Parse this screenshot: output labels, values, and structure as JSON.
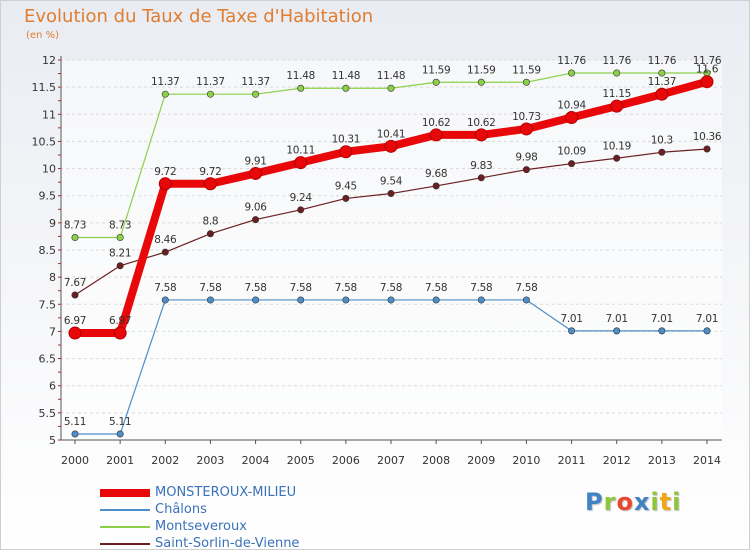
{
  "title": "Evolution du Taux de Taxe d'Habitation",
  "subtitle": "(en %)",
  "logo": {
    "letters": [
      "P",
      "r",
      "o",
      "x",
      "i",
      "t",
      "i"
    ],
    "colors": [
      "#3f83c4",
      "#8fc43c",
      "#e9462e",
      "#3f83c4",
      "#8fc43c",
      "#f2a516",
      "#8fc43c"
    ]
  },
  "chart_data": {
    "type": "line",
    "title": "Evolution du Taux de Taxe d'Habitation",
    "ylabel": "(en %)",
    "x": [
      "2000",
      "2001",
      "2002",
      "2003",
      "2004",
      "2005",
      "2006",
      "2007",
      "2008",
      "2009",
      "2010",
      "2011",
      "2012",
      "2013",
      "2014"
    ],
    "ylim": [
      5,
      12
    ],
    "yticks": [
      "5",
      "5.5",
      "6",
      "6.5",
      "7",
      "7.5",
      "8",
      "8.5",
      "9",
      "9.5",
      "10",
      "10.5",
      "11",
      "11.5",
      "12"
    ],
    "grid": true,
    "legend_position": "bottom-left",
    "series": [
      {
        "name": "MONSTEROUX-MILIEU",
        "color": "#e8080a",
        "values": [
          6.97,
          6.97,
          9.72,
          9.72,
          9.91,
          10.11,
          10.31,
          10.41,
          10.62,
          10.62,
          10.73,
          10.94,
          11.15,
          11.37,
          11.6
        ],
        "labels": [
          "6.97",
          "6.97",
          "9.72",
          "9.72",
          "9.91",
          "10.11",
          "10.31",
          "10.41",
          "10.62",
          "10.62",
          "10.73",
          "10.94",
          "11.15",
          "11.37",
          "11.6"
        ]
      },
      {
        "name": "Châlons",
        "color": "#4d8ec9",
        "values": [
          5.11,
          5.11,
          7.58,
          7.58,
          7.58,
          7.58,
          7.58,
          7.58,
          7.58,
          7.58,
          7.58,
          7.01,
          7.01,
          7.01,
          7.01
        ],
        "labels": [
          "5.11",
          "5.11",
          "7.58",
          "7.58",
          "7.58",
          "7.58",
          "7.58",
          "7.58",
          "7.58",
          "7.58",
          "7.58",
          "7.01",
          "7.01",
          "7.01",
          "7.01"
        ]
      },
      {
        "name": "Montseveroux",
        "color": "#8cd04a",
        "values": [
          8.73,
          8.73,
          11.37,
          11.37,
          11.37,
          11.48,
          11.48,
          11.48,
          11.59,
          11.59,
          11.59,
          11.76,
          11.76,
          11.76,
          11.76
        ],
        "labels": [
          "8.73",
          "8.73",
          "11.37",
          "11.37",
          "11.37",
          "11.48",
          "11.48",
          "11.48",
          "11.59",
          "11.59",
          "11.59",
          "11.76",
          "11.76",
          "11.76",
          "11.76"
        ]
      },
      {
        "name": "Saint-Sorlin-de-Vienne",
        "color": "#6b1f22",
        "values": [
          7.67,
          8.21,
          8.46,
          8.8,
          9.06,
          9.24,
          9.45,
          9.54,
          9.68,
          9.83,
          9.98,
          10.09,
          10.19,
          10.3,
          10.36
        ],
        "labels": [
          "7.67",
          "8.21",
          "8.46",
          "8.8",
          "9.06",
          "9.24",
          "9.45",
          "9.54",
          "9.68",
          "9.83",
          "9.98",
          "10.09",
          "10.19",
          "10.3",
          "10.36"
        ]
      }
    ]
  }
}
